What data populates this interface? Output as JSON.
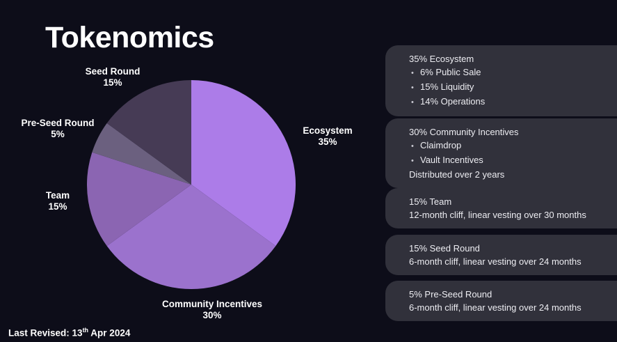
{
  "title": "Tokenomics",
  "colors": {
    "background": "#0d0d19",
    "card_background": "#31313b",
    "text": "#ffffff",
    "accent_light_purple": "#ac7ce8",
    "accent_medium_purple": "#9b72cd",
    "accent_muted_purple": "#8b65b2",
    "accent_gray_purple": "#6b607f",
    "accent_dark_purple": "#463b55"
  },
  "chart_data": {
    "type": "pie",
    "title": "Tokenomics",
    "start_angle": "top",
    "direction": "clockwise",
    "slices": [
      {
        "label": "Ecosystem",
        "value": 35,
        "color": "#ac7ce8"
      },
      {
        "label": "Community Incentives",
        "value": 30,
        "color": "#9b72cd"
      },
      {
        "label": "Team",
        "value": 15,
        "color": "#8b65b2"
      },
      {
        "label": "Pre-Seed Round",
        "value": 5,
        "color": "#6b607f"
      },
      {
        "label": "Seed Round",
        "value": 15,
        "color": "#463b55"
      }
    ],
    "callouts": {
      "ecosystem": {
        "text": "Ecosystem",
        "pct": "35%"
      },
      "community": {
        "text": "Community Incentives",
        "pct": "30%"
      },
      "team": {
        "text": "Team",
        "pct": "15%"
      },
      "pre_seed": {
        "text": "Pre-Seed Round",
        "pct": "5%"
      },
      "seed": {
        "text": "Seed Round",
        "pct": "15%"
      }
    }
  },
  "cards": [
    {
      "heading": "35% Ecosystem",
      "bullets": [
        "6% Public Sale",
        "15% Liquidity",
        "14% Operations"
      ],
      "notes": []
    },
    {
      "heading": "30% Community Incentives",
      "bullets": [
        "Claimdrop",
        "Vault Incentives"
      ],
      "notes": [
        "Distributed over 2 years"
      ]
    },
    {
      "heading": "15% Team",
      "bullets": [],
      "notes": [
        "12-month cliff, linear vesting over 30 months"
      ]
    },
    {
      "heading": "15% Seed Round",
      "bullets": [],
      "notes": [
        "6-month cliff, linear vesting over 24 months"
      ]
    },
    {
      "heading": "5% Pre-Seed Round",
      "bullets": [],
      "notes": [
        "6-month cliff, linear vesting over 24 months"
      ]
    }
  ],
  "footer": {
    "text_before_sup": "Last Revised: 13",
    "sup": "th",
    "text_after_sup": " Apr 2024"
  }
}
